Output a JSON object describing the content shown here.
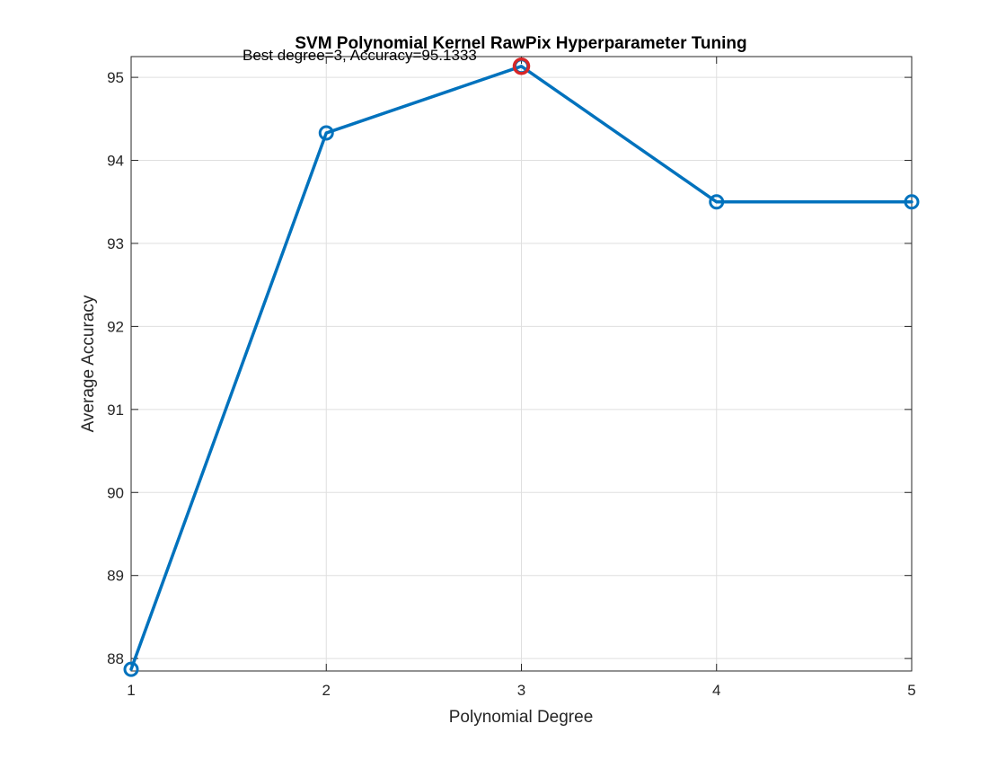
{
  "chart_data": {
    "type": "line",
    "title": "SVM Polynomial Kernel RawPix Hyperparameter Tuning",
    "xlabel": "Polynomial Degree",
    "ylabel": "Average Accuracy",
    "xlim": [
      1,
      5
    ],
    "ylim": [
      87.85,
      95.25
    ],
    "xticks": [
      "1",
      "2",
      "3",
      "4",
      "5"
    ],
    "yticks": [
      "88",
      "89",
      "90",
      "91",
      "92",
      "93",
      "94",
      "95"
    ],
    "grid": true,
    "series": [
      {
        "x": [
          1,
          2,
          3,
          4,
          5
        ],
        "y": [
          87.87,
          94.33,
          95.1333,
          93.5,
          93.5
        ],
        "color": "#0072BD",
        "marker": "circle"
      }
    ],
    "highlight": {
      "x": 3,
      "y": 95.1333,
      "color": "#D62728",
      "marker": "circle"
    },
    "annotation": {
      "text": "Best degree=3, Accuracy=95.1333",
      "x": 3,
      "y": 95.1333
    }
  }
}
